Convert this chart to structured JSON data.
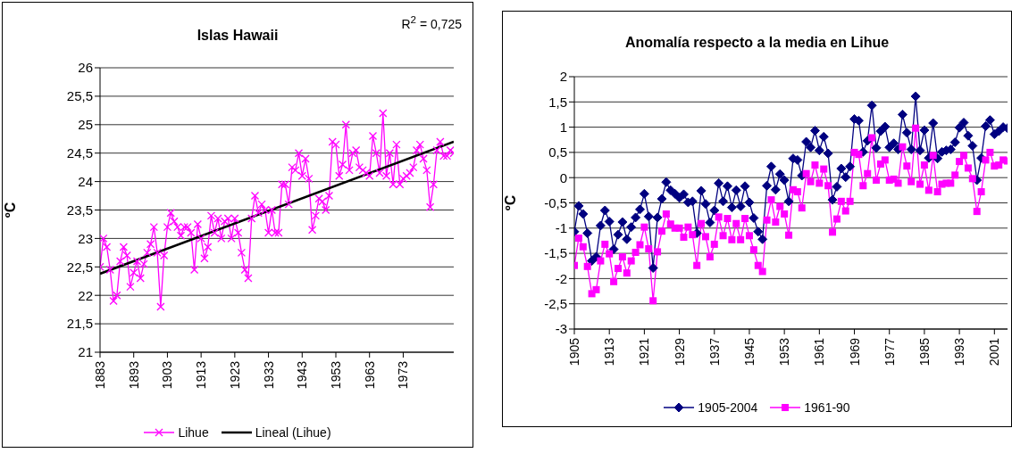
{
  "chart_data": [
    {
      "type": "line",
      "title": "Islas Hawaii",
      "ylabel": "ºC",
      "annotations": [
        "R$^{2}$ = 0,725"
      ],
      "x": [
        1883,
        1884,
        1885,
        1886,
        1887,
        1888,
        1889,
        1890,
        1891,
        1892,
        1893,
        1894,
        1895,
        1896,
        1897,
        1898,
        1899,
        1900,
        1901,
        1902,
        1903,
        1904,
        1905,
        1906,
        1907,
        1908,
        1909,
        1910,
        1911,
        1912,
        1913,
        1914,
        1915,
        1916,
        1917,
        1918,
        1919,
        1920,
        1921,
        1922,
        1923,
        1924,
        1925,
        1926,
        1927,
        1928,
        1929,
        1930,
        1931,
        1932,
        1933,
        1934,
        1935,
        1936,
        1937,
        1938,
        1939,
        1940,
        1941,
        1942,
        1943,
        1944,
        1945,
        1946,
        1947,
        1948,
        1949,
        1950,
        1951,
        1952,
        1953,
        1954,
        1955,
        1956,
        1957,
        1958,
        1959,
        1960,
        1961,
        1962,
        1963,
        1964,
        1965,
        1966,
        1967,
        1968,
        1969,
        1970,
        1971,
        1972,
        1973,
        1974,
        1975,
        1976,
        1977,
        1978,
        1979,
        1980,
        1981,
        1982,
        1983,
        1984,
        1985,
        1986,
        1987,
        1988
      ],
      "series": [
        {
          "name": "Lihue",
          "color": "#ff00ff",
          "marker": "cross",
          "values": [
            22.5,
            23.0,
            22.85,
            22.45,
            21.9,
            22.0,
            22.6,
            22.85,
            22.7,
            22.15,
            22.4,
            22.6,
            22.3,
            22.55,
            22.75,
            22.9,
            23.2,
            22.75,
            21.8,
            22.7,
            23.2,
            23.45,
            23.3,
            23.2,
            23.05,
            23.2,
            23.2,
            23.1,
            22.45,
            23.25,
            23.0,
            22.65,
            22.85,
            23.4,
            23.1,
            23.35,
            23.0,
            23.3,
            23.35,
            23.0,
            23.35,
            23.1,
            22.75,
            22.45,
            22.3,
            23.35,
            23.75,
            23.45,
            23.6,
            23.5,
            23.1,
            23.5,
            23.1,
            23.1,
            23.95,
            23.95,
            23.6,
            24.25,
            24.2,
            24.5,
            24.1,
            24.4,
            24.05,
            23.15,
            23.4,
            23.7,
            23.65,
            23.5,
            23.75,
            24.7,
            24.65,
            24.1,
            24.3,
            25.0,
            24.2,
            24.5,
            24.55,
            24.25,
            24.2,
            24.15,
            24.1,
            24.8,
            24.5,
            24.15,
            25.2,
            24.1,
            24.5,
            23.95,
            24.65,
            23.95,
            24.05,
            24.1,
            24.15,
            24.25,
            24.55,
            24.65,
            24.4,
            24.2,
            23.55,
            23.95,
            24.55,
            24.7,
            24.45,
            24.45,
            24.55,
            24.5
          ]
        },
        {
          "name": "Lineal (Lihue)",
          "color": "#000000",
          "marker": "none",
          "x": [
            1883,
            1988
          ],
          "values": [
            22.38,
            24.7
          ]
        }
      ],
      "xlim": [
        1883,
        1988
      ],
      "xticks": [
        1883,
        1893,
        1903,
        1913,
        1923,
        1933,
        1943,
        1953,
        1963,
        1973
      ],
      "ylim": [
        21,
        26
      ],
      "yticks": [
        21,
        {
          "value": 21.5,
          "label": "21,5"
        },
        22,
        {
          "value": 22.5,
          "label": "22,5"
        },
        23,
        {
          "value": 23.5,
          "label": "23,5"
        },
        24,
        {
          "value": 24.5,
          "label": "24,5"
        },
        25,
        {
          "value": 25.5,
          "label": "25,5"
        },
        26
      ],
      "grid": "y",
      "legend": "bottom"
    },
    {
      "type": "line",
      "title": "Anomalía respecto a la media en Lihue",
      "ylabel": "ºC",
      "x": [
        1905,
        1906,
        1907,
        1908,
        1909,
        1910,
        1911,
        1912,
        1913,
        1914,
        1915,
        1916,
        1917,
        1918,
        1919,
        1920,
        1921,
        1922,
        1923,
        1924,
        1925,
        1926,
        1927,
        1928,
        1929,
        1930,
        1931,
        1932,
        1933,
        1934,
        1935,
        1936,
        1937,
        1938,
        1939,
        1940,
        1941,
        1942,
        1943,
        1944,
        1945,
        1946,
        1947,
        1948,
        1949,
        1950,
        1951,
        1952,
        1953,
        1954,
        1955,
        1956,
        1957,
        1958,
        1959,
        1960,
        1961,
        1962,
        1963,
        1964,
        1965,
        1966,
        1967,
        1968,
        1969,
        1970,
        1971,
        1972,
        1973,
        1974,
        1975,
        1976,
        1977,
        1978,
        1979,
        1980,
        1981,
        1982,
        1983,
        1984,
        1985,
        1986,
        1987,
        1988,
        1989,
        1990,
        1991,
        1992,
        1993,
        1994,
        1995,
        1996,
        1997,
        1998,
        1999,
        2000,
        2001,
        2002,
        2003,
        2004
      ],
      "series": [
        {
          "name": "1905-2004",
          "color": "#000080",
          "marker": "diamond",
          "values": [
            -1.07,
            -0.56,
            -0.72,
            -1.1,
            -1.65,
            -1.57,
            -0.95,
            -0.65,
            -0.87,
            -1.42,
            -1.13,
            -0.88,
            -1.22,
            -0.98,
            -0.79,
            -0.63,
            -0.32,
            -0.77,
            -1.79,
            -0.79,
            -0.42,
            -0.09,
            -0.25,
            -0.32,
            -0.4,
            -0.33,
            -0.49,
            -0.47,
            -1.1,
            -0.26,
            -0.52,
            -0.89,
            -0.65,
            -0.11,
            -0.47,
            -0.17,
            -0.59,
            -0.25,
            -0.57,
            -0.17,
            -0.49,
            -0.8,
            -1.07,
            -1.22,
            -0.16,
            0.22,
            -0.24,
            0.07,
            -0.05,
            -0.47,
            0.38,
            0.35,
            0.04,
            0.71,
            0.6,
            0.93,
            0.54,
            0.81,
            0.48,
            -0.44,
            -0.18,
            0.18,
            0.01,
            0.22,
            1.16,
            1.13,
            0.51,
            0.73,
            1.43,
            0.59,
            0.92,
            1.01,
            0.6,
            0.68,
            0.56,
            1.25,
            0.89,
            0.56,
            1.61,
            0.54,
            0.94,
            0.39,
            1.08,
            0.38,
            0.51,
            0.54,
            0.56,
            0.7,
            0.99,
            1.09,
            0.83,
            0.63,
            -0.05,
            0.39,
            1.02,
            1.14,
            0.86,
            0.92,
            1.0,
            0.98
          ]
        },
        {
          "name": "1961-90",
          "color": "#ff00ff",
          "marker": "square",
          "values": [
            -1.74,
            -1.2,
            -1.37,
            -1.76,
            -2.3,
            -2.22,
            -1.65,
            -1.32,
            -1.51,
            -2.06,
            -1.8,
            -1.57,
            -1.89,
            -1.65,
            -1.48,
            -1.33,
            -0.98,
            -1.41,
            -2.44,
            -1.47,
            -1.06,
            -0.72,
            -0.92,
            -1.0,
            -1.0,
            -1.18,
            -0.98,
            -1.13,
            -1.74,
            -0.91,
            -1.17,
            -1.57,
            -1.32,
            -0.78,
            -1.15,
            -0.81,
            -1.23,
            -0.91,
            -1.23,
            -0.81,
            -1.15,
            -1.43,
            -1.74,
            -1.86,
            -0.84,
            -0.44,
            -0.88,
            -0.57,
            -0.72,
            -1.14,
            -0.24,
            -0.28,
            -0.6,
            0.08,
            -0.08,
            0.25,
            -0.11,
            0.17,
            -0.16,
            -1.08,
            -0.82,
            -0.47,
            -0.66,
            -0.47,
            0.5,
            0.46,
            -0.16,
            0.08,
            0.79,
            -0.05,
            0.27,
            0.35,
            -0.05,
            -0.03,
            -0.11,
            0.61,
            0.23,
            -0.08,
            0.98,
            -0.13,
            0.25,
            -0.25,
            0.44,
            -0.28,
            -0.13,
            -0.11,
            -0.11,
            0.05,
            0.32,
            0.44,
            0.19,
            -0.02,
            -0.67,
            -0.28,
            0.35,
            0.5,
            0.23,
            0.25,
            0.35,
            0.33
          ]
        }
      ],
      "xlim": [
        1905,
        2004
      ],
      "xticks": [
        1905,
        1913,
        1921,
        1929,
        1937,
        1945,
        1953,
        1961,
        1969,
        1977,
        1985,
        1993,
        2001
      ],
      "ylim": [
        -3,
        2
      ],
      "yticks": [
        -3,
        {
          "value": -2.5,
          "label": "-2,5"
        },
        -2,
        {
          "value": -1.5,
          "label": "-1,5"
        },
        -1,
        {
          "value": -0.5,
          "label": "-0,5"
        },
        0,
        {
          "value": 0.5,
          "label": "0,5"
        },
        1,
        {
          "value": 1.5,
          "label": "1,5"
        },
        2
      ],
      "grid": "y",
      "legend": "bottom"
    }
  ]
}
